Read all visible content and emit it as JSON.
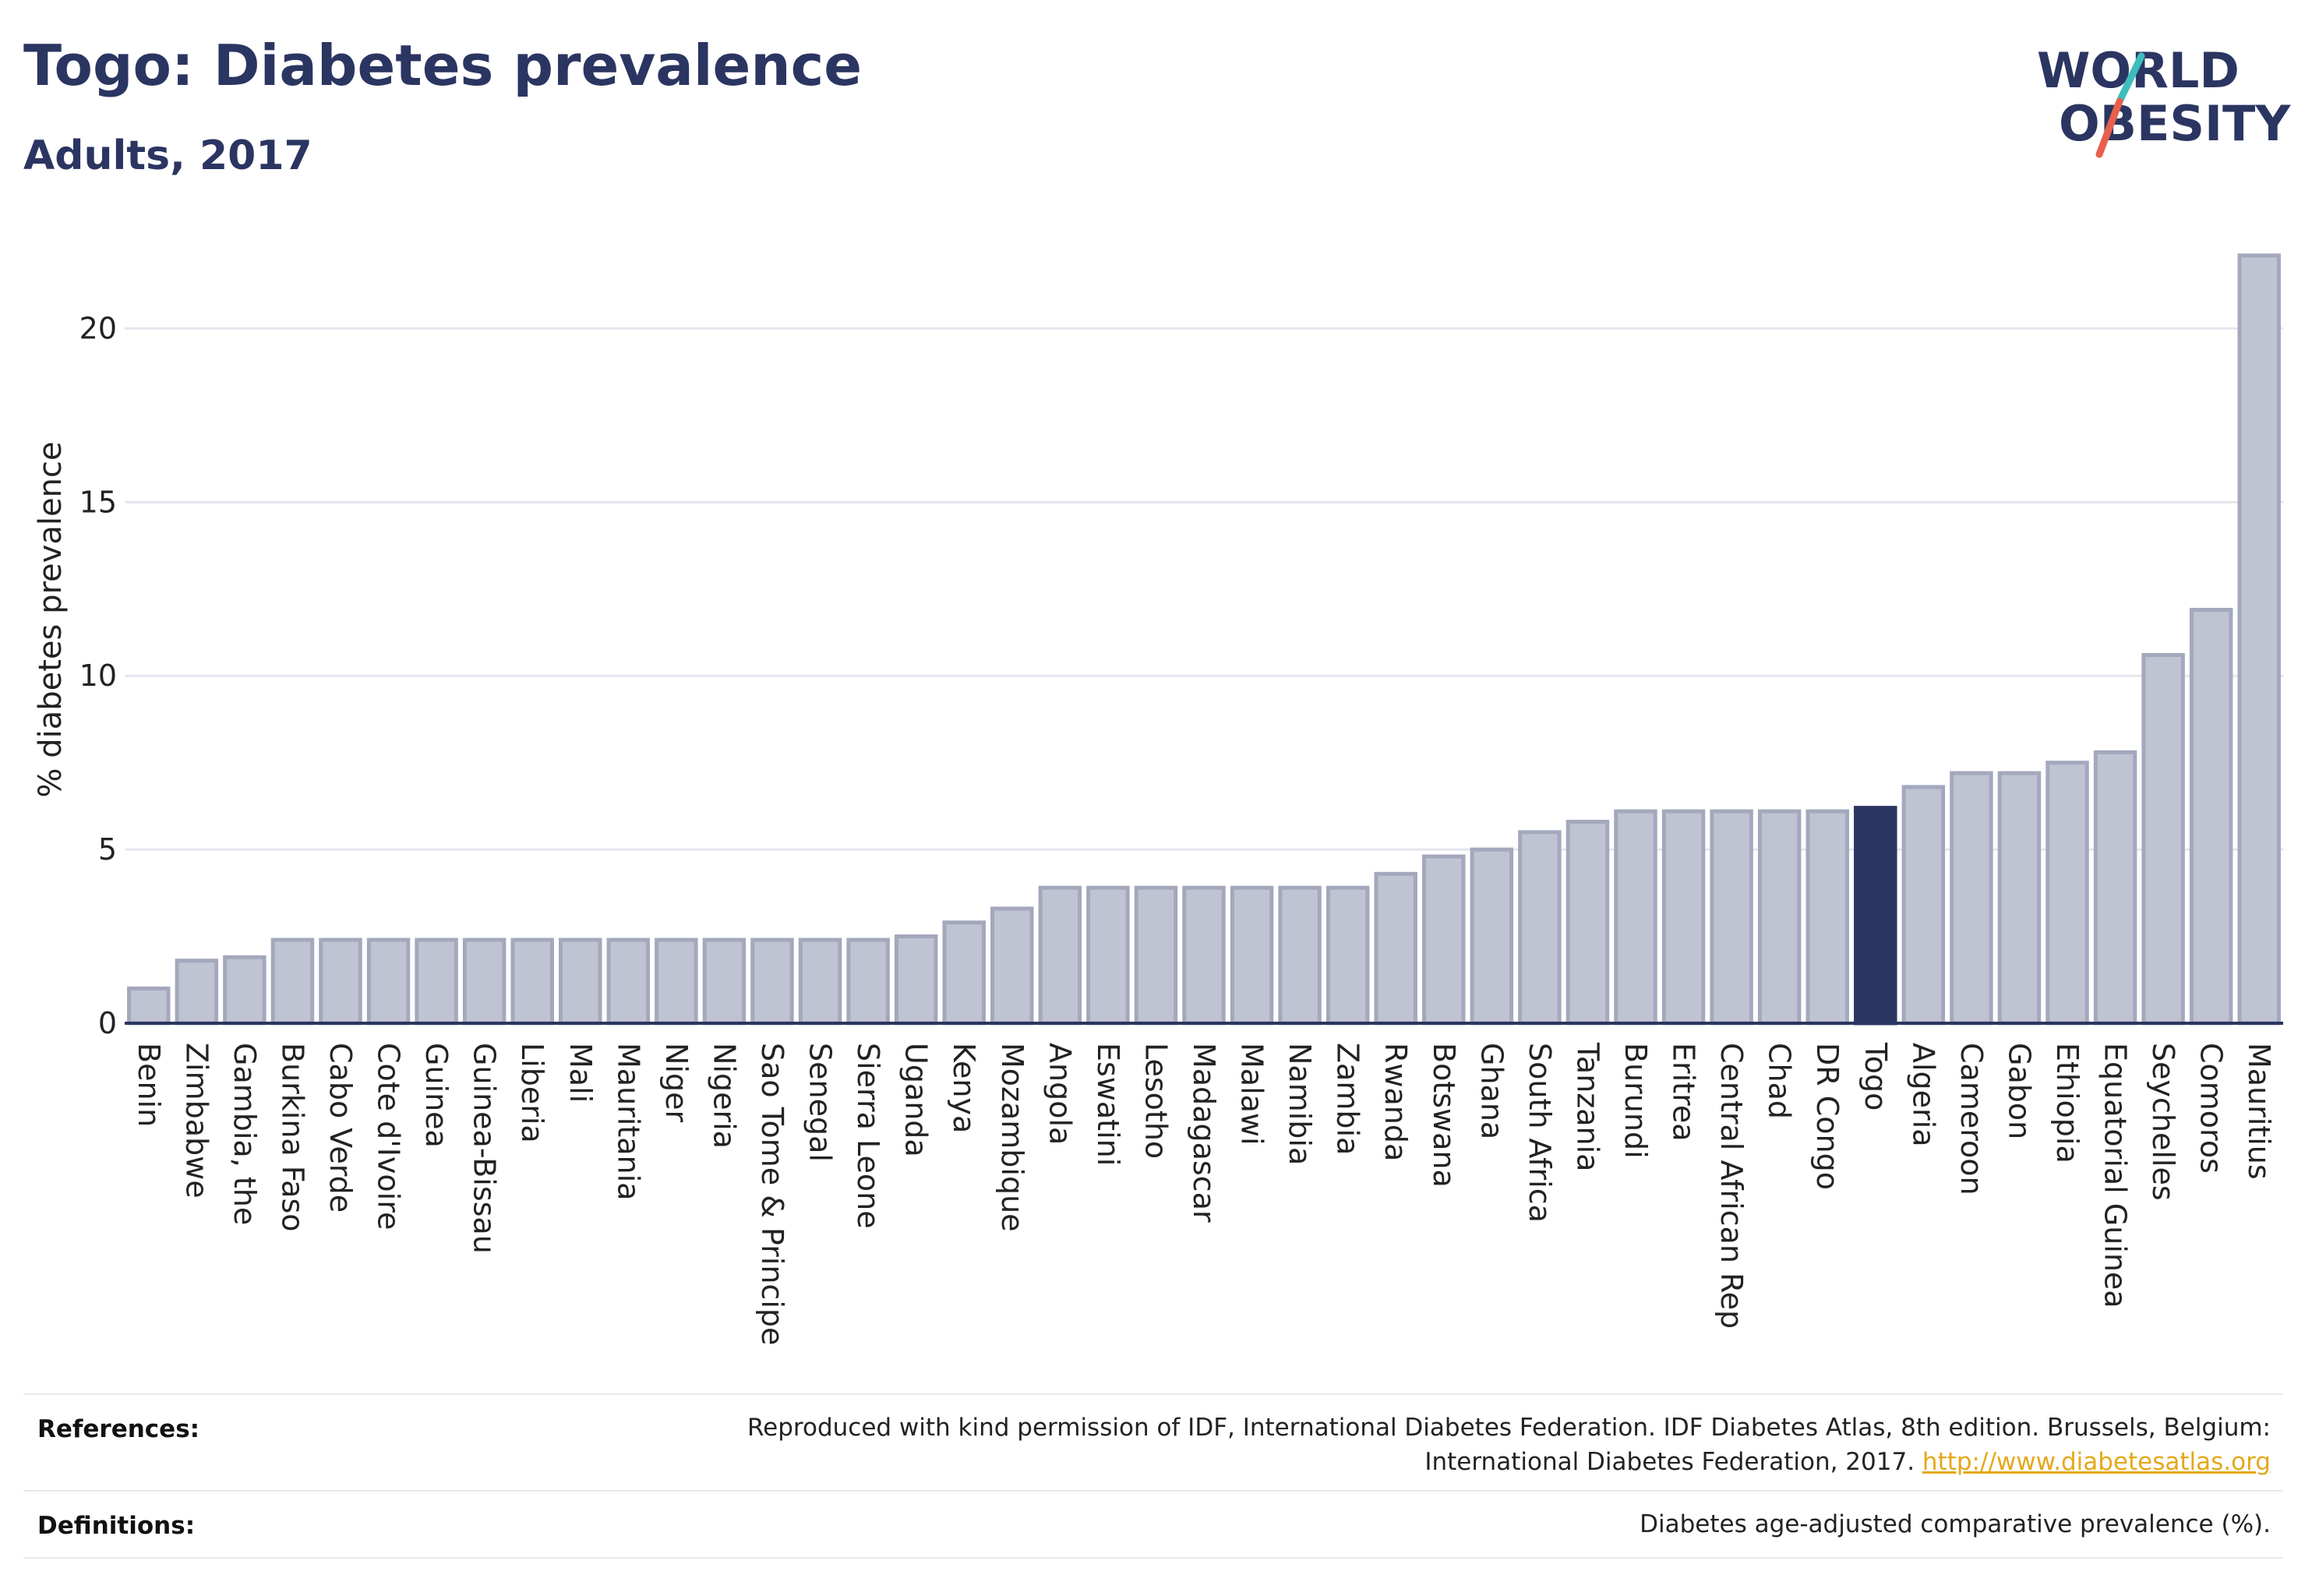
{
  "header": {
    "title": "Togo: Diabetes prevalence",
    "subtitle": "Adults, 2017"
  },
  "logo": {
    "line1": "WORLD",
    "line2": "OBESITY",
    "slash_color_top": "#3dbdbd",
    "slash_color_bottom": "#e8604c"
  },
  "colors": {
    "bar_fill": "#c0c3d1",
    "bar_stroke": "#a3a8bd",
    "highlight": "#2b3561",
    "grid": "#e6e6ee"
  },
  "chart_data": {
    "type": "bar",
    "ylabel": "% diabetes prevalence",
    "xlabel": "",
    "ylim": [
      0,
      22.5
    ],
    "yticks": [
      0,
      5,
      10,
      15,
      20
    ],
    "grid": true,
    "highlight": "Togo",
    "categories": [
      "Benin",
      "Zimbabwe",
      "Gambia, the",
      "Burkina Faso",
      "Cabo Verde",
      "Cote d'Ivoire",
      "Guinea",
      "Guinea-Bissau",
      "Liberia",
      "Mali",
      "Mauritania",
      "Niger",
      "Nigeria",
      "Sao Tome & Principe",
      "Senegal",
      "Sierra Leone",
      "Uganda",
      "Kenya",
      "Mozambique",
      "Angola",
      "Eswatini",
      "Lesotho",
      "Madagascar",
      "Malawi",
      "Namibia",
      "Zambia",
      "Rwanda",
      "Botswana",
      "Ghana",
      "South Africa",
      "Tanzania",
      "Burundi",
      "Eritrea",
      "Central African Rep",
      "Chad",
      "DR Congo",
      "Togo",
      "Algeria",
      "Cameroon",
      "Gabon",
      "Ethiopia",
      "Equatorial Guinea",
      "Seychelles",
      "Comoros",
      "Mauritius"
    ],
    "values": [
      1.0,
      1.8,
      1.9,
      2.4,
      2.4,
      2.4,
      2.4,
      2.4,
      2.4,
      2.4,
      2.4,
      2.4,
      2.4,
      2.4,
      2.4,
      2.4,
      2.5,
      2.9,
      3.3,
      3.9,
      3.9,
      3.9,
      3.9,
      3.9,
      3.9,
      3.9,
      4.3,
      4.8,
      5.0,
      5.5,
      5.8,
      6.1,
      6.1,
      6.1,
      6.1,
      6.1,
      6.2,
      6.8,
      7.2,
      7.2,
      7.5,
      7.8,
      10.6,
      11.9,
      22.1
    ]
  },
  "footer": {
    "references_label": "References:",
    "references_text_line1": "Reproduced with kind permission of IDF, International Diabetes Federation. IDF Diabetes Atlas, 8th edition. Brussels, Belgium:",
    "references_text_line2": "International Diabetes Federation, 2017.",
    "references_link": "http://www.diabetesatlas.org",
    "definitions_label": "Definitions:",
    "definitions_text": "Diabetes age-adjusted comparative prevalence (%)."
  }
}
